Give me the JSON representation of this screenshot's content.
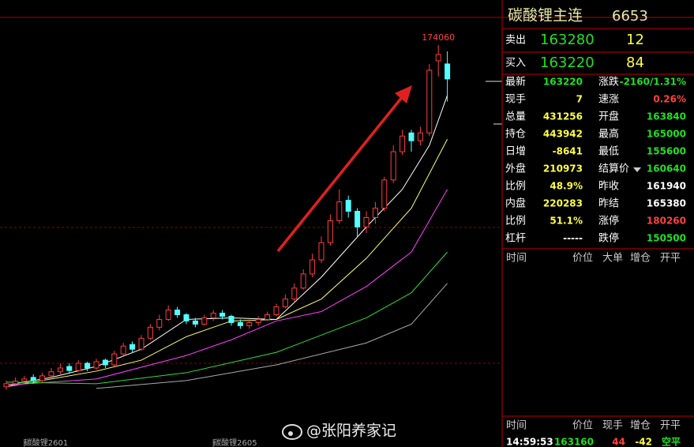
{
  "chart_data": {
    "type": "candlestick",
    "ylim": [
      45800,
      188400
    ],
    "categories": [
      null,
      null,
      "碳酸锂2601",
      null,
      null,
      null,
      null,
      null,
      null,
      null,
      null,
      null,
      null,
      null,
      null,
      null,
      null,
      null,
      null,
      null,
      null,
      null,
      null,
      "碳酸锂2605",
      null,
      null,
      null,
      null,
      null,
      null,
      null,
      null,
      null,
      null,
      null,
      null,
      null,
      null,
      null,
      null,
      null,
      null,
      null,
      null,
      null,
      null,
      null,
      null,
      null,
      null
    ],
    "open": [
      65000,
      66000,
      66800,
      68000,
      67000,
      68500,
      69800,
      71500,
      70200,
      72500,
      71000,
      73500,
      72000,
      75500,
      78500,
      77000,
      80500,
      84000,
      86500,
      89500,
      88000,
      86000,
      85000,
      87000,
      88500,
      87500,
      85500,
      84500,
      85500,
      86500,
      88000,
      90500,
      93000,
      96500,
      101000,
      105500,
      111000,
      118000,
      124500,
      121000,
      116000,
      119000,
      122000,
      131000,
      140000,
      146000,
      143500,
      146000,
      169000,
      168000
    ],
    "high": [
      67000,
      68000,
      68500,
      69000,
      69500,
      71000,
      72500,
      72500,
      73500,
      73000,
      74000,
      74000,
      76500,
      79000,
      79500,
      81500,
      85000,
      88000,
      91000,
      90500,
      88500,
      87000,
      88000,
      89500,
      89500,
      88000,
      86500,
      86500,
      87500,
      89000,
      91500,
      94500,
      98000,
      102500,
      107500,
      113000,
      120000,
      128000,
      126000,
      122000,
      121000,
      124000,
      132000,
      142000,
      147000,
      147000,
      148000,
      168000,
      174060,
      172000
    ],
    "low": [
      64000,
      65200,
      65800,
      66000,
      66500,
      67800,
      69000,
      69500,
      69800,
      70000,
      70500,
      71000,
      71500,
      75000,
      76000,
      76500,
      80000,
      83000,
      86000,
      87000,
      85000,
      84000,
      84500,
      86000,
      86500,
      84500,
      83500,
      83500,
      84500,
      86000,
      87500,
      90000,
      92000,
      96000,
      100000,
      104500,
      110000,
      117000,
      119000,
      113000,
      114000,
      117000,
      121000,
      130000,
      139000,
      140000,
      142000,
      145000,
      164000,
      156000
    ],
    "close": [
      66000,
      66800,
      67500,
      67000,
      68500,
      69800,
      71000,
      70200,
      72500,
      71000,
      73000,
      72000,
      75500,
      78000,
      77000,
      80500,
      84000,
      86500,
      89500,
      88000,
      86000,
      85000,
      87000,
      88500,
      87500,
      85500,
      84500,
      85500,
      86500,
      88000,
      90500,
      93000,
      96500,
      101000,
      105500,
      111000,
      118000,
      124000,
      121000,
      116000,
      119000,
      122000,
      131000,
      140000,
      145000,
      143500,
      146000,
      166000,
      171000,
      163220
    ],
    "up_color": "#ff3c3c",
    "down_color": "#54ffff",
    "series": [
      {
        "color": "#ffffff",
        "x": [
          0,
          5,
          10,
          15,
          20,
          25,
          30,
          35,
          40,
          44,
          47,
          49
        ],
        "values": [
          65500,
          68000,
          71500,
          77000,
          86500,
          87000,
          86500,
          100000,
          116000,
          128000,
          142000,
          158000
        ]
      },
      {
        "color": "#ffff66",
        "x": [
          0,
          10,
          15,
          20,
          25,
          30,
          35,
          40,
          45,
          49
        ],
        "values": [
          65000,
          70000,
          73500,
          81000,
          86000,
          86500,
          93000,
          106000,
          122000,
          144000
        ]
      },
      {
        "color": "#ff40ff",
        "x": [
          0,
          10,
          20,
          25,
          30,
          35,
          40,
          45,
          49
        ],
        "values": [
          65500,
          67500,
          75000,
          80000,
          86000,
          89000,
          97000,
          108000,
          128000
        ]
      },
      {
        "color": "#33dd33",
        "x": [
          0,
          10,
          20,
          30,
          40,
          45,
          49
        ],
        "values": [
          66500,
          66000,
          69500,
          76000,
          87000,
          95000,
          108000
        ]
      },
      {
        "color": "#aaaaaa",
        "x": [
          10,
          20,
          30,
          40,
          45,
          49
        ],
        "values": [
          64500,
          67000,
          72000,
          79000,
          85000,
          98000
        ]
      }
    ]
  },
  "quote": {
    "title": "碳酸锂主连",
    "code": "6653",
    "ask": {
      "label": "卖出",
      "price": 163280,
      "volume": 12
    },
    "bid": {
      "label": "买入",
      "price": 163220,
      "volume": 84
    },
    "rows": [
      {
        "cells": [
          "最新",
          163220,
          "涨跌",
          "-2160/1.31%"
        ],
        "colors": [
          "#fff",
          "#20e020",
          "#fff",
          "#20e020"
        ]
      },
      {
        "cells": [
          "现手",
          7,
          "速涨",
          "0.26%"
        ],
        "colors": [
          "#fff",
          "#ffff40",
          "#fff",
          "#ff4040"
        ]
      },
      {
        "cells": [
          "总量",
          431256,
          "开盘",
          163840
        ],
        "colors": [
          "#fff",
          "#ffff40",
          "#fff",
          "#20e020"
        ]
      },
      {
        "cells": [
          "持仓",
          443942,
          "最高",
          165000
        ],
        "colors": [
          "#fff",
          "#ffff40",
          "#fff",
          "#20e020"
        ]
      },
      {
        "cells": [
          "日增",
          -8641,
          "最低",
          155600
        ],
        "colors": [
          "#fff",
          "#ffff40",
          "#fff",
          "#20e020"
        ]
      },
      {
        "cells": [
          "外盘",
          210973,
          "结算价",
          160640
        ],
        "colors": [
          "#fff",
          "#ffff40",
          "#fff",
          "#20e020"
        ]
      },
      {
        "cells": [
          "比例",
          "48.9%",
          "昨收",
          161940
        ],
        "colors": [
          "#fff",
          "#ffff40",
          "#fff",
          "#fff"
        ]
      },
      {
        "cells": [
          "内盘",
          220283,
          "昨结",
          165380
        ],
        "colors": [
          "#fff",
          "#ffff40",
          "#fff",
          "#fff"
        ]
      },
      {
        "cells": [
          "比例",
          "51.1%",
          "涨停",
          180260
        ],
        "colors": [
          "#fff",
          "#ffff40",
          "#fff",
          "#ff4040"
        ]
      },
      {
        "cells": [
          "杠杆",
          "-----",
          "跌停",
          150500
        ],
        "colors": [
          "#fff",
          "#fff",
          "#fff",
          "#20e020"
        ]
      }
    ]
  },
  "ticks": {
    "header": [
      "时间",
      "价位",
      "大单",
      "增仓",
      "开平"
    ],
    "footer_header": [
      "时间",
      "价位",
      "现手",
      "增仓",
      "开平"
    ],
    "last": [
      "14:59:53",
      163160,
      44,
      -42,
      "空平"
    ],
    "last_colors": [
      "#fff",
      "#20e020",
      "#ff4040",
      "#ffff40",
      "#20e020"
    ]
  },
  "watermark": "@张阳养家记"
}
